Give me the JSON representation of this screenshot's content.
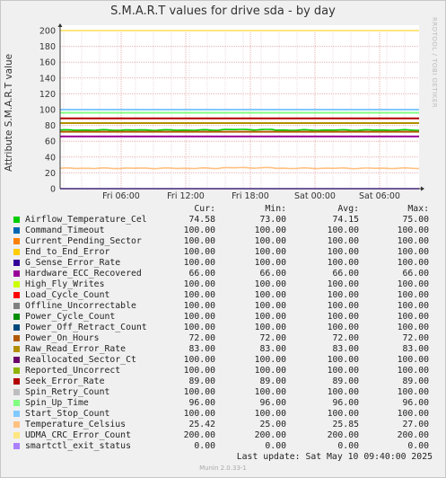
{
  "chart_data": {
    "type": "line",
    "title": "S.M.A.R.T values for drive sda - by day",
    "ylabel": "Attribute S.M.A.R.T value",
    "ylim": [
      0,
      200
    ],
    "yticks": [
      0,
      20,
      40,
      60,
      80,
      100,
      120,
      140,
      160,
      180,
      200
    ],
    "xticks": [
      "Fri 06:00",
      "Fri 12:00",
      "Fri 18:00",
      "Sat 00:00",
      "Sat 06:00"
    ],
    "grid": true,
    "series": [
      {
        "name": "Airflow_Temperature_Cel",
        "color": "#00cc00",
        "cur": "74.58",
        "min": "73.00",
        "avg": "74.15",
        "max": "75.00"
      },
      {
        "name": "Command_Timeout",
        "color": "#0066b3",
        "cur": "100.00",
        "min": "100.00",
        "avg": "100.00",
        "max": "100.00"
      },
      {
        "name": "Current_Pending_Sector",
        "color": "#ff8000",
        "cur": "100.00",
        "min": "100.00",
        "avg": "100.00",
        "max": "100.00"
      },
      {
        "name": "End_to_End_Error",
        "color": "#ffcc00",
        "cur": "100.00",
        "min": "100.00",
        "avg": "100.00",
        "max": "100.00"
      },
      {
        "name": "G_Sense_Error_Rate",
        "color": "#330099",
        "cur": "100.00",
        "min": "100.00",
        "avg": "100.00",
        "max": "100.00"
      },
      {
        "name": "Hardware_ECC_Recovered",
        "color": "#990099",
        "cur": "66.00",
        "min": "66.00",
        "avg": "66.00",
        "max": "66.00"
      },
      {
        "name": "High_Fly_Writes",
        "color": "#ccff00",
        "cur": "100.00",
        "min": "100.00",
        "avg": "100.00",
        "max": "100.00"
      },
      {
        "name": "Load_Cycle_Count",
        "color": "#ff0000",
        "cur": "100.00",
        "min": "100.00",
        "avg": "100.00",
        "max": "100.00"
      },
      {
        "name": "Offline_Uncorrectable",
        "color": "#808080",
        "cur": "100.00",
        "min": "100.00",
        "avg": "100.00",
        "max": "100.00"
      },
      {
        "name": "Power_Cycle_Count",
        "color": "#008f00",
        "cur": "100.00",
        "min": "100.00",
        "avg": "100.00",
        "max": "100.00"
      },
      {
        "name": "Power_Off_Retract_Count",
        "color": "#00487d",
        "cur": "100.00",
        "min": "100.00",
        "avg": "100.00",
        "max": "100.00"
      },
      {
        "name": "Power_On_Hours",
        "color": "#b35a00",
        "cur": "72.00",
        "min": "72.00",
        "avg": "72.00",
        "max": "72.00"
      },
      {
        "name": "Raw_Read_Error_Rate",
        "color": "#b38f00",
        "cur": "83.00",
        "min": "83.00",
        "avg": "83.00",
        "max": "83.00"
      },
      {
        "name": "Reallocated_Sector_Ct",
        "color": "#6b006b",
        "cur": "100.00",
        "min": "100.00",
        "avg": "100.00",
        "max": "100.00"
      },
      {
        "name": "Reported_Uncorrect",
        "color": "#8fb300",
        "cur": "100.00",
        "min": "100.00",
        "avg": "100.00",
        "max": "100.00"
      },
      {
        "name": "Seek_Error_Rate",
        "color": "#b30000",
        "cur": "89.00",
        "min": "89.00",
        "avg": "89.00",
        "max": "89.00"
      },
      {
        "name": "Spin_Retry_Count",
        "color": "#bebebe",
        "cur": "100.00",
        "min": "100.00",
        "avg": "100.00",
        "max": "100.00"
      },
      {
        "name": "Spin_Up_Time",
        "color": "#80ff80",
        "cur": "96.00",
        "min": "96.00",
        "avg": "96.00",
        "max": "96.00"
      },
      {
        "name": "Start_Stop_Count",
        "color": "#80c9ff",
        "cur": "100.00",
        "min": "100.00",
        "avg": "100.00",
        "max": "100.00"
      },
      {
        "name": "Temperature_Celsius",
        "color": "#ffc080",
        "cur": "25.42",
        "min": "25.00",
        "avg": "25.85",
        "max": "27.00"
      },
      {
        "name": "UDMA_CRC_Error_Count",
        "color": "#ffe680",
        "cur": "200.00",
        "min": "200.00",
        "avg": "200.00",
        "max": "200.00"
      },
      {
        "name": "smartctl_exit_status",
        "color": "#aa80ff",
        "cur": "0.00",
        "min": "0.00",
        "avg": "0.00",
        "max": "0.00"
      }
    ]
  },
  "legend_headers": {
    "cur": "Cur:",
    "min": "Min:",
    "avg": "Avg:",
    "max": "Max:"
  },
  "last_update": "Last update:  Sat May 10 09:40:00 2025",
  "watermark": "RRDTOOL / TOBI OETIKER",
  "footer": "Munin 2.0.33-1"
}
